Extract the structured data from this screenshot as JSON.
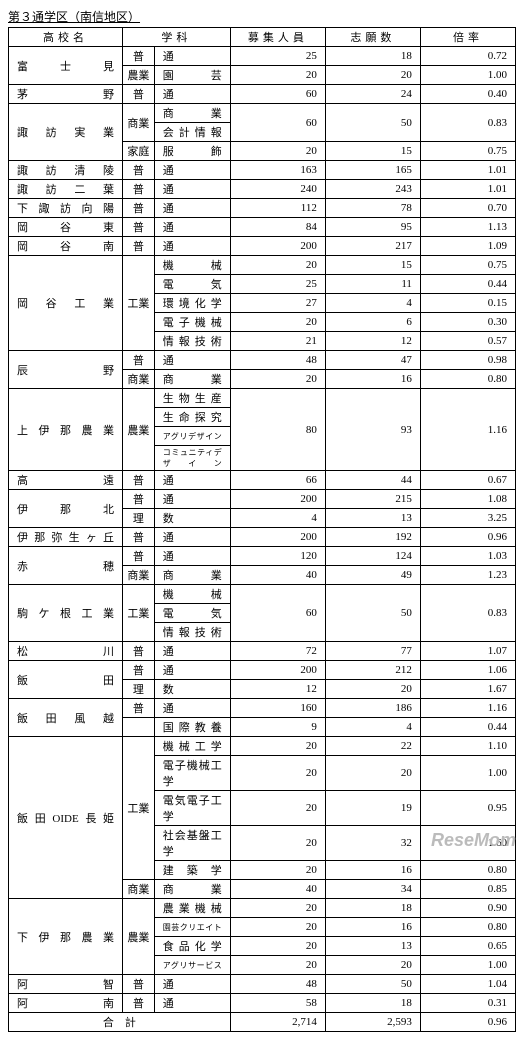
{
  "title": "第３通学区（南信地区）",
  "headers": {
    "school": "高校名",
    "dept": "学科",
    "capacity": "募集人員",
    "applicants": "志願数",
    "ratio": "倍率"
  },
  "watermark": "ReseMom",
  "rows": [
    {
      "school": "富士見",
      "span": 2,
      "deptA": {
        "t": "普",
        "span": 1
      },
      "deptB": "通",
      "c": "25",
      "a": "18",
      "r": "0.72"
    },
    {
      "deptA": {
        "t": "農業",
        "span": 1
      },
      "deptB": "園　芸",
      "c": "20",
      "a": "20",
      "r": "1.00"
    },
    {
      "school": "茅野",
      "span": 1,
      "deptA": {
        "t": "普",
        "span": 1
      },
      "deptB": "通",
      "c": "60",
      "a": "24",
      "r": "0.40"
    },
    {
      "school": "諏訪実業",
      "span": 3,
      "deptA": {
        "t": "商業",
        "span": 2
      },
      "deptB": "商　業",
      "c": "60",
      "cSpan": 2,
      "a": "50",
      "aSpan": 2,
      "r": "0.83",
      "rSpan": 2
    },
    {
      "deptB": "会計情報"
    },
    {
      "deptA": {
        "t": "家庭",
        "span": 1
      },
      "deptB": "服　飾",
      "c": "20",
      "a": "15",
      "r": "0.75"
    },
    {
      "school": "諏訪清陵",
      "span": 1,
      "deptA": {
        "t": "普",
        "span": 1
      },
      "deptB": "通",
      "c": "163",
      "a": "165",
      "r": "1.01"
    },
    {
      "school": "諏訪二葉",
      "span": 1,
      "deptA": {
        "t": "普",
        "span": 1
      },
      "deptB": "通",
      "c": "240",
      "a": "243",
      "r": "1.01"
    },
    {
      "school": "下諏訪向陽",
      "span": 1,
      "deptA": {
        "t": "普",
        "span": 1
      },
      "deptB": "通",
      "c": "112",
      "a": "78",
      "r": "0.70"
    },
    {
      "school": "岡谷東",
      "span": 1,
      "deptA": {
        "t": "普",
        "span": 1
      },
      "deptB": "通",
      "c": "84",
      "a": "95",
      "r": "1.13"
    },
    {
      "school": "岡谷南",
      "span": 1,
      "deptA": {
        "t": "普",
        "span": 1
      },
      "deptB": "通",
      "c": "200",
      "a": "217",
      "r": "1.09"
    },
    {
      "school": "岡谷工業",
      "span": 5,
      "deptA": {
        "t": "工業",
        "span": 5
      },
      "deptB": "機　械",
      "c": "20",
      "a": "15",
      "r": "0.75"
    },
    {
      "deptB": "電　気",
      "c": "25",
      "a": "11",
      "r": "0.44"
    },
    {
      "deptB": "環境化学",
      "c": "27",
      "a": "4",
      "r": "0.15"
    },
    {
      "deptB": "電子機械",
      "c": "20",
      "a": "6",
      "r": "0.30"
    },
    {
      "deptB": "情報技術",
      "c": "21",
      "a": "12",
      "r": "0.57"
    },
    {
      "school": "辰野",
      "span": 2,
      "deptA": {
        "t": "普",
        "span": 1
      },
      "deptB": "通",
      "c": "48",
      "a": "47",
      "r": "0.98"
    },
    {
      "deptA": {
        "t": "商業",
        "span": 1
      },
      "deptB": "商　業",
      "c": "20",
      "a": "16",
      "r": "0.80"
    },
    {
      "school": "上伊那農業",
      "span": 4,
      "deptA": {
        "t": "農業",
        "span": 4
      },
      "deptB": "生物生産",
      "c": "80",
      "cSpan": 4,
      "a": "93",
      "aSpan": 4,
      "r": "1.16",
      "rSpan": 4
    },
    {
      "deptB": "生命探究"
    },
    {
      "deptB": "アグリデザイン",
      "small": true
    },
    {
      "deptB": "コミュニティデザイン",
      "small": true
    },
    {
      "school": "高遠",
      "span": 1,
      "deptA": {
        "t": "普",
        "span": 1
      },
      "deptB": "通",
      "c": "66",
      "a": "44",
      "r": "0.67"
    },
    {
      "school": "伊那北",
      "span": 2,
      "deptA": {
        "t": "普",
        "span": 1
      },
      "deptB": "通",
      "c": "200",
      "a": "215",
      "r": "1.08"
    },
    {
      "deptA": {
        "t": "理",
        "span": 1
      },
      "deptB": "数",
      "c": "4",
      "a": "13",
      "r": "3.25"
    },
    {
      "school": "伊那弥生ヶ丘",
      "span": 1,
      "deptA": {
        "t": "普",
        "span": 1
      },
      "deptB": "通",
      "c": "200",
      "a": "192",
      "r": "0.96"
    },
    {
      "school": "赤穂",
      "span": 2,
      "deptA": {
        "t": "普",
        "span": 1
      },
      "deptB": "通",
      "c": "120",
      "a": "124",
      "r": "1.03"
    },
    {
      "deptA": {
        "t": "商業",
        "span": 1
      },
      "deptB": "商　業",
      "c": "40",
      "a": "49",
      "r": "1.23"
    },
    {
      "school": "駒ケ根工業",
      "span": 3,
      "deptA": {
        "t": "工業",
        "span": 3
      },
      "deptB": "機　械",
      "c": "60",
      "cSpan": 3,
      "a": "50",
      "aSpan": 3,
      "r": "0.83",
      "rSpan": 3
    },
    {
      "deptB": "電　気"
    },
    {
      "deptB": "情報技術"
    },
    {
      "school": "松川",
      "span": 1,
      "deptA": {
        "t": "普",
        "span": 1
      },
      "deptB": "通",
      "c": "72",
      "a": "77",
      "r": "1.07"
    },
    {
      "school": "飯田",
      "span": 2,
      "deptA": {
        "t": "普",
        "span": 1
      },
      "deptB": "通",
      "c": "200",
      "a": "212",
      "r": "1.06"
    },
    {
      "deptA": {
        "t": "理",
        "span": 1
      },
      "deptB": "数",
      "c": "12",
      "a": "20",
      "r": "1.67"
    },
    {
      "school": "飯田風越",
      "span": 2,
      "deptA": {
        "t": "普",
        "span": 1
      },
      "deptB": "通",
      "c": "160",
      "a": "186",
      "r": "1.16"
    },
    {
      "deptA": {
        "t": "",
        "span": 1
      },
      "deptB": "国際教養",
      "c": "9",
      "a": "4",
      "r": "0.44"
    },
    {
      "school": "飯田OIDE長姫",
      "span": 6,
      "deptA": {
        "t": "工業",
        "span": 5
      },
      "deptB": "機械工学",
      "c": "20",
      "a": "22",
      "r": "1.10"
    },
    {
      "deptB": "電子機械工学",
      "c": "20",
      "a": "20",
      "r": "1.00"
    },
    {
      "deptB": "電気電子工学",
      "c": "20",
      "a": "19",
      "r": "0.95"
    },
    {
      "deptB": "社会基盤工学",
      "c": "20",
      "a": "32",
      "r": "1.60"
    },
    {
      "deptB": "建　築　学",
      "c": "20",
      "a": "16",
      "r": "0.80"
    },
    {
      "deptA": {
        "t": "商業",
        "span": 1
      },
      "deptB": "商　業",
      "c": "40",
      "a": "34",
      "r": "0.85"
    },
    {
      "school": "下伊那農業",
      "span": 4,
      "deptA": {
        "t": "農業",
        "span": 4
      },
      "deptB": "農業機械",
      "c": "20",
      "a": "18",
      "r": "0.90"
    },
    {
      "deptB": "園芸クリエイト",
      "small": true,
      "c": "20",
      "a": "16",
      "r": "0.80"
    },
    {
      "deptB": "食品化学",
      "c": "20",
      "a": "13",
      "r": "0.65"
    },
    {
      "deptB": "アグリサービス",
      "small": true,
      "c": "20",
      "a": "20",
      "r": "1.00"
    },
    {
      "school": "阿智",
      "span": 1,
      "deptA": {
        "t": "普",
        "span": 1
      },
      "deptB": "通",
      "c": "48",
      "a": "50",
      "r": "1.04"
    },
    {
      "school": "阿南",
      "span": 1,
      "deptA": {
        "t": "普",
        "span": 1
      },
      "deptB": "通",
      "c": "58",
      "a": "18",
      "r": "0.31"
    }
  ],
  "total": {
    "label": "合　計",
    "c": "2,714",
    "a": "2,593",
    "r": "0.96"
  }
}
